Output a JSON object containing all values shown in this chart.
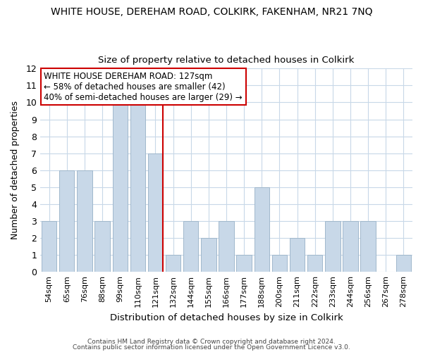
{
  "title": "WHITE HOUSE, DEREHAM ROAD, COLKIRK, FAKENHAM, NR21 7NQ",
  "subtitle": "Size of property relative to detached houses in Colkirk",
  "xlabel": "Distribution of detached houses by size in Colkirk",
  "ylabel": "Number of detached properties",
  "bar_labels": [
    "54sqm",
    "65sqm",
    "76sqm",
    "88sqm",
    "99sqm",
    "110sqm",
    "121sqm",
    "132sqm",
    "144sqm",
    "155sqm",
    "166sqm",
    "177sqm",
    "188sqm",
    "200sqm",
    "211sqm",
    "222sqm",
    "233sqm",
    "244sqm",
    "256sqm",
    "267sqm",
    "278sqm"
  ],
  "bar_values": [
    3,
    6,
    6,
    3,
    10,
    10,
    7,
    1,
    3,
    2,
    3,
    1,
    5,
    1,
    2,
    1,
    3,
    3,
    3,
    0,
    1
  ],
  "bar_color": "#c8d8e8",
  "bar_edgecolor": "#a0b8cc",
  "highlight_index": 6,
  "highlight_line_color": "#cc0000",
  "ylim": [
    0,
    12
  ],
  "yticks": [
    0,
    1,
    2,
    3,
    4,
    5,
    6,
    7,
    8,
    9,
    10,
    11,
    12
  ],
  "annotation_title": "WHITE HOUSE DEREHAM ROAD: 127sqm",
  "annotation_line1": "← 58% of detached houses are smaller (42)",
  "annotation_line2": "40% of semi-detached houses are larger (29) →",
  "annotation_box_edgecolor": "#cc0000",
  "footer_line1": "Contains HM Land Registry data © Crown copyright and database right 2024.",
  "footer_line2": "Contains public sector information licensed under the Open Government Licence v3.0.",
  "background_color": "#ffffff",
  "grid_color": "#c8d8e8"
}
